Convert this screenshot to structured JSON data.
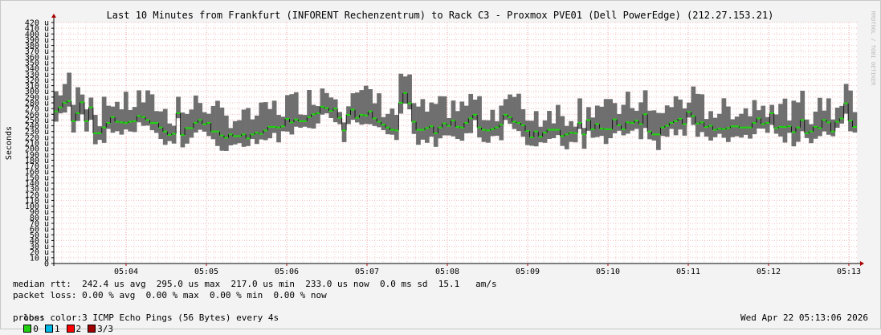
{
  "chart_data": {
    "type": "line",
    "title": "Last 10 Minutes from Frankfurt (INFORENT Rechenzentrum) to Rack C3 - Proxmox PVE01 (Dell PowerEdge) (212.27.153.21)",
    "ylabel": "Seconds",
    "y_unit": "us",
    "ylim": [
      0,
      420
    ],
    "y_ticks": [
      "0",
      "10 u",
      "20 u",
      "30 u",
      "40 u",
      "50 u",
      "60 u",
      "70 u",
      "80 u",
      "90 u",
      "100 u",
      "110 u",
      "120 u",
      "130 u",
      "140 u",
      "150 u",
      "160 u",
      "170 u",
      "180 u",
      "190 u",
      "200 u",
      "210 u",
      "220 u",
      "230 u",
      "240 u",
      "250 u",
      "260 u",
      "270 u",
      "280 u",
      "290 u",
      "300 u",
      "310 u",
      "320 u",
      "330 u",
      "340 u",
      "350 u",
      "360 u",
      "370 u",
      "380 u",
      "390 u",
      "400 u",
      "410 u",
      "420 u"
    ],
    "x_ticks": [
      "05:04",
      "05:05",
      "05:06",
      "05:07",
      "05:08",
      "05:09",
      "05:10",
      "05:11",
      "05:12",
      "05:13"
    ],
    "grid": true,
    "watermark": "RRDTOOL / TOBI OETIKER",
    "series": [
      {
        "name": "median rtt",
        "color": "#22d012",
        "values": [
          265,
          272,
          280,
          283,
          248,
          262,
          281,
          248,
          272,
          227,
          227,
          237,
          245,
          255,
          247,
          246,
          245,
          247,
          248,
          257,
          255,
          250,
          245,
          245,
          237,
          230,
          224,
          226,
          262,
          224,
          236,
          236,
          245,
          250,
          243,
          245,
          230,
          230,
          223,
          219,
          225,
          222,
          222,
          225,
          218,
          225,
          228,
          226,
          232,
          238,
          238,
          237,
          239,
          252,
          246,
          251,
          248,
          248,
          255,
          260,
          262,
          273,
          271,
          266,
          270,
          254,
          232,
          259,
          268,
          254,
          259,
          258,
          265,
          253,
          247,
          242,
          237,
          233,
          232,
          280,
          297,
          279,
          247,
          233,
          233,
          236,
          239,
          227,
          237,
          244,
          240,
          249,
          238,
          237,
          245,
          253,
          259,
          237,
          233,
          232,
          234,
          237,
          242,
          259,
          255,
          247,
          245,
          241,
          231,
          220,
          230,
          221,
          228,
          233,
          233,
          233,
          222,
          225,
          228,
          227,
          245,
          225,
          250,
          234,
          243,
          235,
          234,
          234,
          251,
          241,
          234,
          246,
          245,
          249,
          243,
          260,
          230,
          225,
          225,
          237,
          240,
          245,
          248,
          252,
          243,
          264,
          257,
          244,
          246,
          238,
          240,
          233,
          235,
          234,
          236,
          239,
          239,
          237,
          237,
          237,
          245,
          253,
          243,
          245,
          262,
          236,
          238,
          238,
          239,
          229,
          237,
          250,
          227,
          230,
          238,
          236,
          250,
          246,
          230,
          247,
          253,
          279,
          249,
          238
        ]
      }
    ]
  },
  "legend": {
    "rtt_line": "median rtt:  242.4 us avg  295.0 us max  217.0 us min  233.0 us now  0.0 ms sd  15.1   am/s",
    "loss_line": "packet loss: 0.00 % avg  0.00 % max  0.00 % min  0.00 % now",
    "loss_color_label": "loss color:",
    "loss_colors": [
      {
        "label": "0",
        "color": "#22d012"
      },
      {
        "label": "1",
        "color": "#00b8e6"
      },
      {
        "label": "2",
        "color": "#ff0000"
      },
      {
        "label": "3/3",
        "color": "#a10000"
      }
    ],
    "probe_line": "probe:       3 ICMP Echo Pings (56 Bytes) every 4s",
    "timestamp": "Wed Apr 22 05:13:06 2026"
  }
}
